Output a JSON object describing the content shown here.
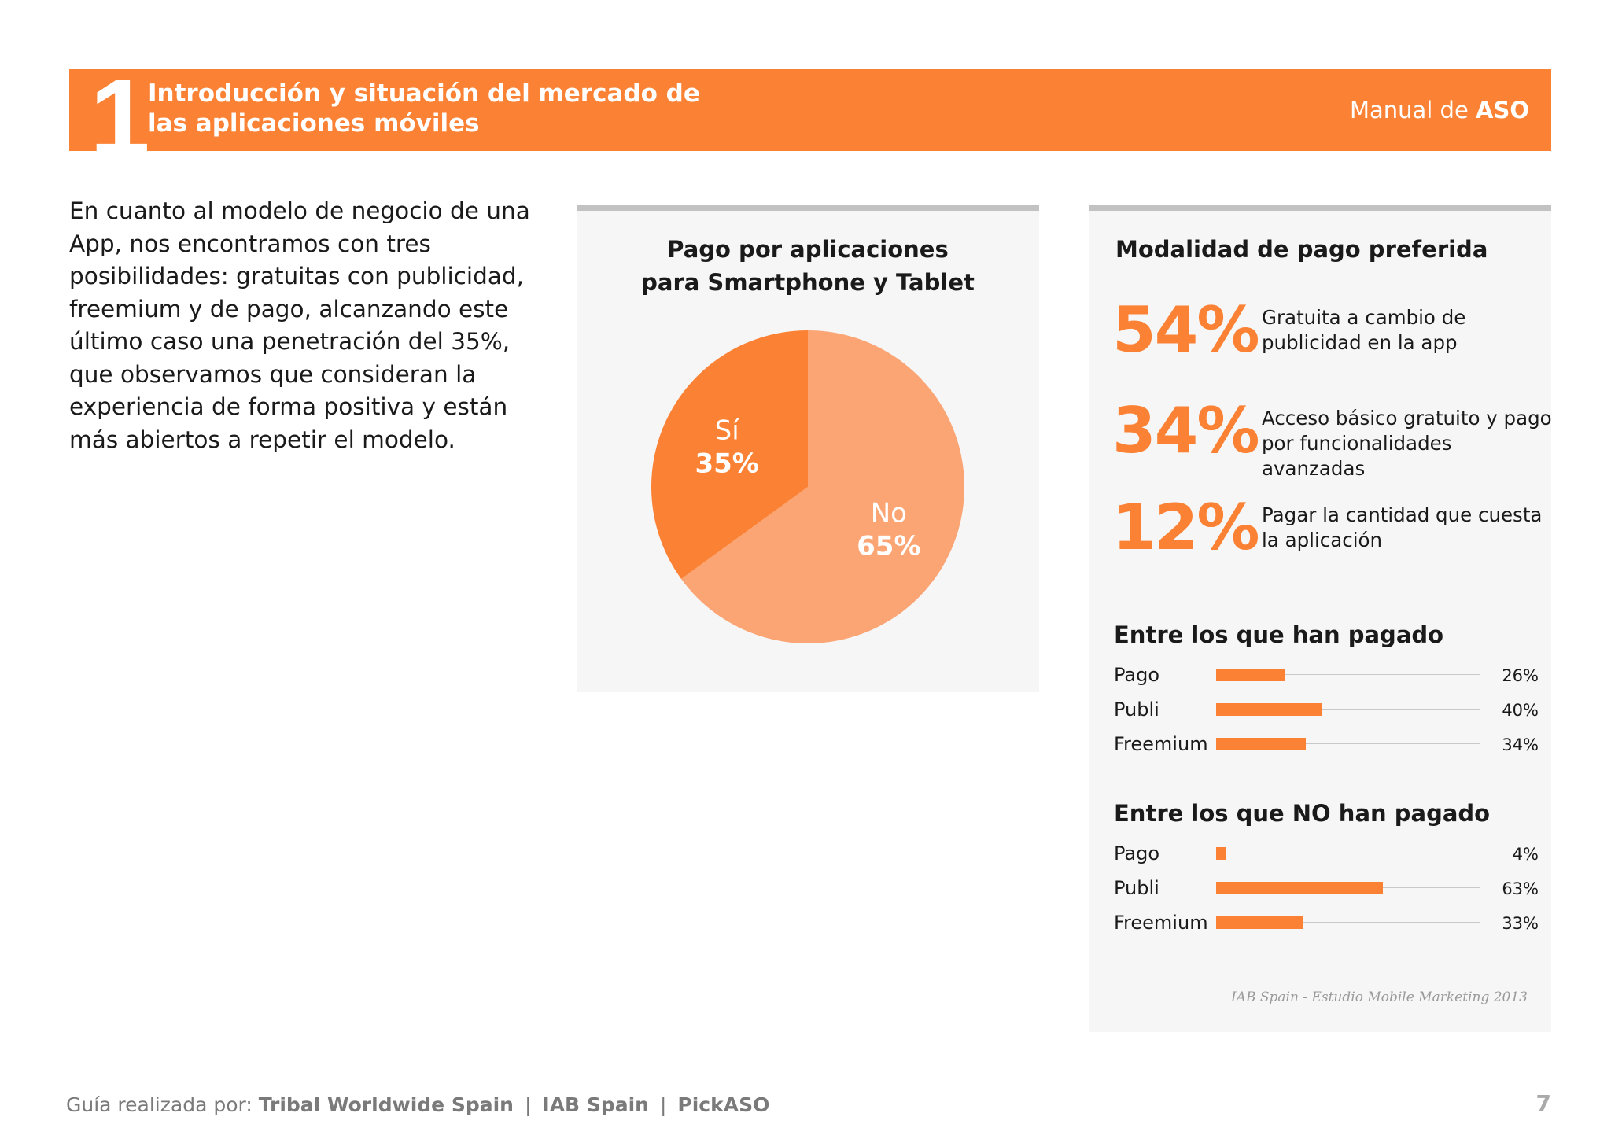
{
  "header": {
    "number": "1",
    "title_line1": "Introducción y situación del mercado de",
    "title_line2": "las aplicaciones móviles",
    "brand_prefix": "Manual de ",
    "brand_strong": "ASO"
  },
  "intro_text": "En cuanto al modelo de negocio de una App, nos encontramos con tres posibilidades: gratuitas con publicidad, freemium y de pago, alcanzando este último caso una penetración del 35%, que observamos que consideran la experiencia de forma positiva y están más abiertos a repetir el modelo.",
  "pie_panel": {
    "title_line1": "Pago por aplicaciones",
    "title_line2": "para Smartphone y Tablet"
  },
  "chart_data": {
    "type": "pie",
    "slices": [
      {
        "label": "Sí",
        "value_label": "35%",
        "value": 35,
        "color": "#fb8234"
      },
      {
        "label": "No",
        "value_label": "65%",
        "value": 65,
        "color": "#fba574"
      }
    ]
  },
  "payment_panel": {
    "title": "Modalidad de pago preferida",
    "stats": [
      {
        "pct": "54%",
        "line1": "Gratuita a cambio de",
        "line2": "publicidad en la app"
      },
      {
        "pct": "34%",
        "line1": "Acceso básico gratuito y pago",
        "line2": "por funcionalidades avanzadas"
      },
      {
        "pct": "12%",
        "line1": "Pagar la cantidad que cuesta",
        "line2": "la aplicación"
      }
    ],
    "paid": {
      "title": "Entre los que han pagado",
      "rows": [
        {
          "label": "Pago",
          "value": 26,
          "value_label": "26%"
        },
        {
          "label": "Publi",
          "value": 40,
          "value_label": "40%"
        },
        {
          "label": "Freemium",
          "value": 34,
          "value_label": "34%"
        }
      ]
    },
    "not_paid": {
      "title": "Entre los que NO han pagado",
      "rows": [
        {
          "label": "Pago",
          "value": 4,
          "value_label": "4%"
        },
        {
          "label": "Publi",
          "value": 63,
          "value_label": "63%"
        },
        {
          "label": "Freemium",
          "value": 33,
          "value_label": "33%"
        }
      ]
    },
    "source": "IAB Spain - Estudio  Mobile Marketing 2013"
  },
  "footer": {
    "prefix": "Guía realizada por: ",
    "org1": "Tribal Worldwide Spain",
    "separator": "|",
    "org2": "IAB Spain",
    "org3": "PickASO",
    "page_number": "7"
  },
  "colors": {
    "accent": "#fb8234",
    "accent_light": "#fba574",
    "panel_bg": "#f6f6f7",
    "panel_border": "#c2c2c2"
  }
}
